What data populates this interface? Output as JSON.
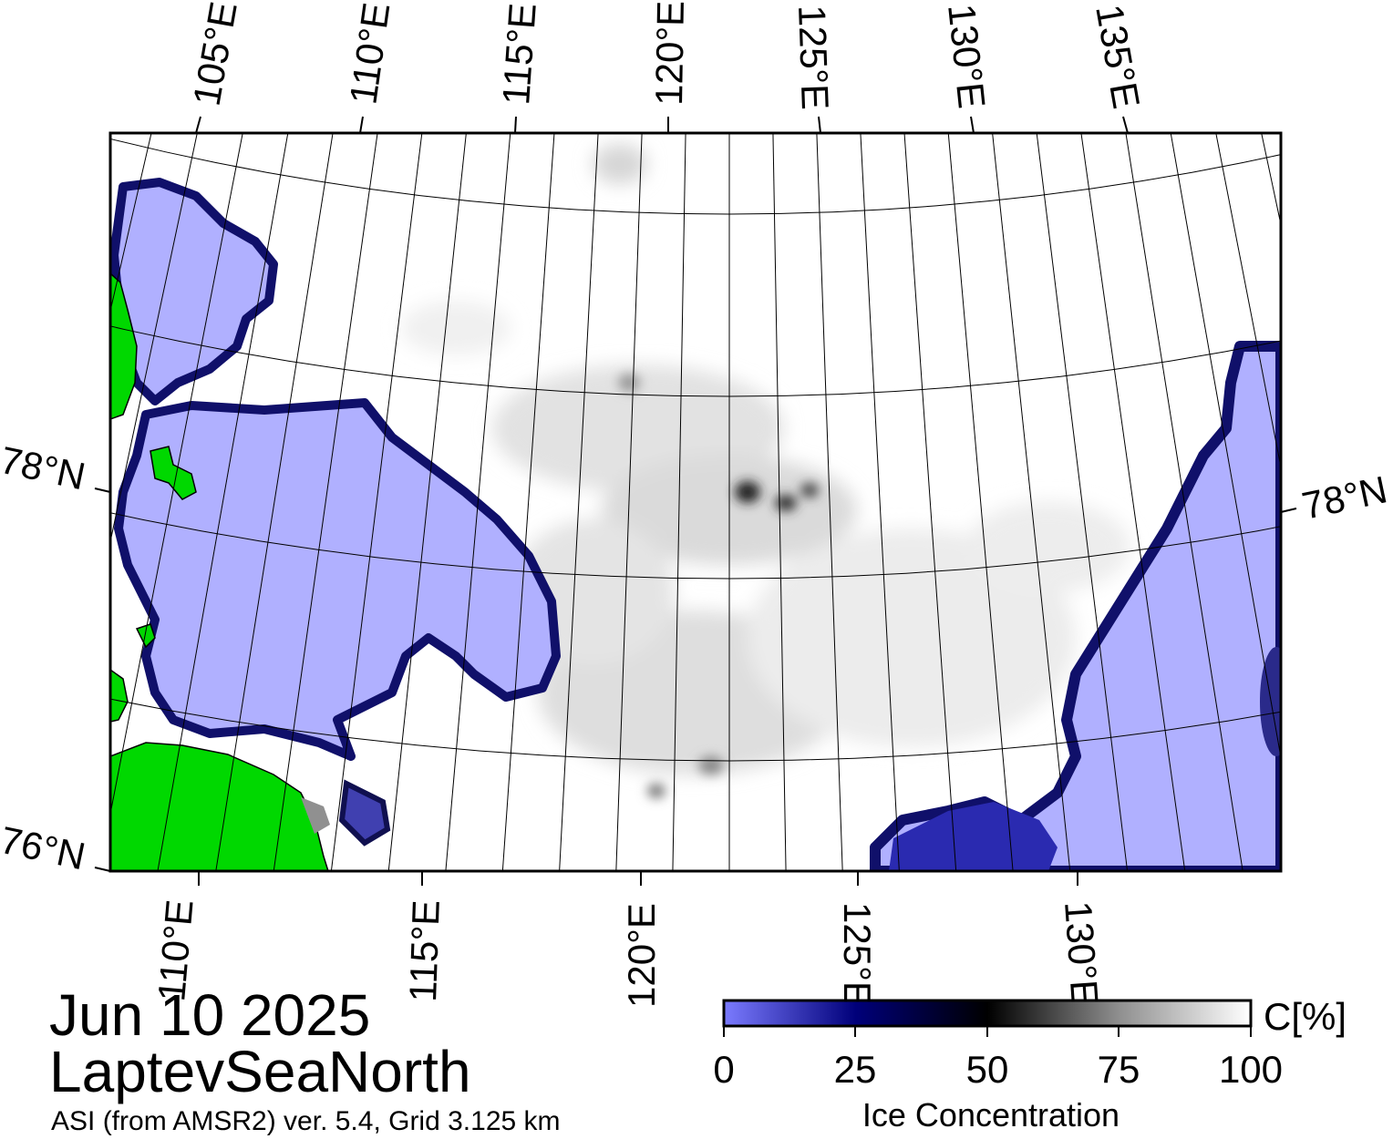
{
  "header": {
    "date": "Jun 10 2025",
    "region": "LaptevSeaNorth",
    "product": "ASI (from AMSR2) ver. 5.4,  Grid 3.125 km"
  },
  "map": {
    "projection": "polar-stereographic",
    "lat_labels": {
      "left": [
        "78°N",
        "76°N"
      ],
      "right": [
        "78°N"
      ]
    },
    "lon_labels": {
      "top": [
        "105°E",
        "110°E",
        "115°E",
        "120°E",
        "125°E",
        "130°E",
        "135°E"
      ],
      "bottom": [
        "110°E",
        "115°E",
        "120°E",
        "125°E",
        "130°E"
      ]
    },
    "colors": {
      "open_water_low": "#b0b0ff",
      "land": "#00d800",
      "ice_high": "#ffffff",
      "graticule": "#000000",
      "frame": "#000000"
    }
  },
  "colorbar": {
    "title": "Ice Concentration",
    "unit_label": "C[%]",
    "ticks": [
      "0",
      "25",
      "50",
      "75",
      "100"
    ],
    "range": [
      0,
      100
    ],
    "stops": [
      {
        "value": 0,
        "color": "#7b7bff"
      },
      {
        "value": 25,
        "color": "#00007a"
      },
      {
        "value": 50,
        "color": "#000000"
      },
      {
        "value": 75,
        "color": "#8f8f8f"
      },
      {
        "value": 100,
        "color": "#ffffff"
      }
    ]
  }
}
